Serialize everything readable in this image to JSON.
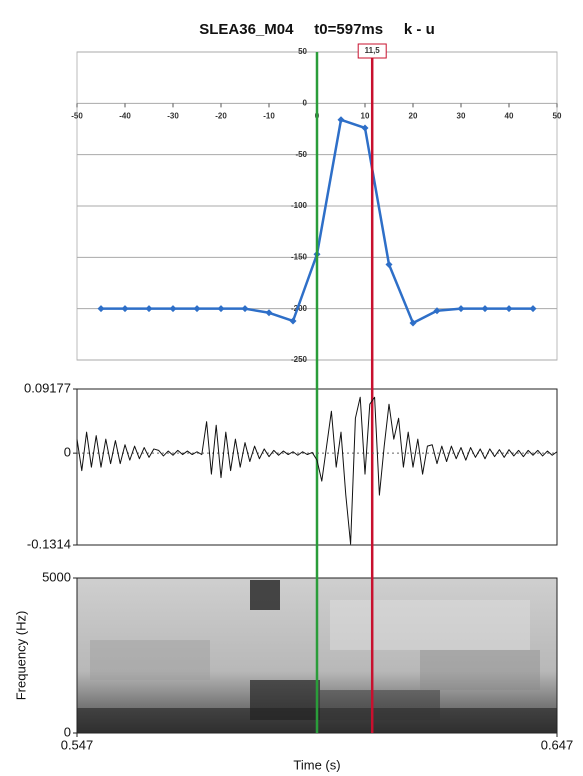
{
  "title": "SLEA36_M04     t0=597ms     k - u",
  "chart_data": [
    {
      "type": "line",
      "color": "#2e6fc8",
      "x": [
        -45,
        -40,
        -35,
        -30,
        -25,
        -20,
        -15,
        -10,
        -5,
        0,
        5,
        10,
        15,
        20,
        25,
        30,
        35,
        40,
        45
      ],
      "values": [
        -200,
        -200,
        -200,
        -200,
        -200,
        -200,
        -200,
        -204,
        -212,
        -147,
        -16,
        -24,
        -157,
        -214,
        -202,
        -200,
        -200,
        -200,
        -200
      ],
      "xlim": [
        -50,
        50
      ],
      "xticks": [
        -50,
        -40,
        -30,
        -20,
        -10,
        0,
        10,
        20,
        30,
        40,
        50
      ],
      "ylim": [
        -250,
        50
      ],
      "yticks": [
        -250,
        -200,
        -150,
        -100,
        -50,
        0,
        50
      ],
      "grid": true,
      "markers": [
        {
          "x": 0,
          "color": "#2a9d3a"
        },
        {
          "x": 11.5,
          "label": "11,5",
          "color": "#c8102e"
        }
      ]
    },
    {
      "type": "waveform",
      "color": "#111111",
      "x": [
        0.547,
        0.548,
        0.549,
        0.55,
        0.551,
        0.552,
        0.553,
        0.554,
        0.555,
        0.556,
        0.557,
        0.558,
        0.559,
        0.56,
        0.561,
        0.562,
        0.563,
        0.564,
        0.565,
        0.566,
        0.567,
        0.568,
        0.569,
        0.57,
        0.571,
        0.572,
        0.573,
        0.574,
        0.575,
        0.576,
        0.577,
        0.578,
        0.579,
        0.58,
        0.581,
        0.582,
        0.583,
        0.584,
        0.585,
        0.586,
        0.587,
        0.588,
        0.589,
        0.59,
        0.591,
        0.592,
        0.593,
        0.594,
        0.595,
        0.596,
        0.597,
        0.598,
        0.599,
        0.6,
        0.601,
        0.602,
        0.603,
        0.604,
        0.605,
        0.606,
        0.607,
        0.608,
        0.609,
        0.61,
        0.611,
        0.612,
        0.613,
        0.614,
        0.615,
        0.616,
        0.617,
        0.618,
        0.619,
        0.62,
        0.621,
        0.622,
        0.623,
        0.624,
        0.625,
        0.626,
        0.627,
        0.628,
        0.629,
        0.63,
        0.631,
        0.632,
        0.633,
        0.634,
        0.635,
        0.636,
        0.637,
        0.638,
        0.639,
        0.64,
        0.641,
        0.642,
        0.643,
        0.644,
        0.645,
        0.646,
        0.647
      ],
      "values": [
        0.02,
        -0.025,
        0.03,
        -0.02,
        0.025,
        -0.02,
        0.02,
        -0.015,
        0.018,
        -0.015,
        0.012,
        -0.01,
        0.01,
        -0.008,
        0.008,
        -0.006,
        0.006,
        0.004,
        -0.004,
        0.003,
        -0.003,
        0.004,
        -0.002,
        0.003,
        -0.002,
        0.002,
        -0.002,
        0.045,
        -0.03,
        0.04,
        -0.035,
        0.03,
        -0.025,
        0.02,
        -0.02,
        0.015,
        -0.012,
        0.01,
        -0.008,
        0.006,
        -0.005,
        0.004,
        -0.003,
        0.003,
        -0.002,
        0.002,
        -0.003,
        0.002,
        -0.002,
        0.001,
        -0.01,
        -0.04,
        0.01,
        0.06,
        -0.02,
        0.03,
        -0.06,
        -0.13,
        0.05,
        0.08,
        -0.03,
        0.07,
        0.08,
        -0.06,
        0.01,
        0.07,
        0.02,
        0.05,
        -0.02,
        0.03,
        -0.02,
        0.02,
        -0.03,
        0.01,
        0.012,
        -0.015,
        0.01,
        -0.012,
        0.01,
        -0.008,
        0.008,
        -0.01,
        0.008,
        -0.006,
        0.006,
        -0.008,
        0.006,
        -0.005,
        0.005,
        -0.006,
        0.005,
        -0.004,
        0.004,
        -0.005,
        0.004,
        -0.003,
        0.004,
        -0.004,
        0.003,
        -0.003,
        0.002
      ],
      "xlim": [
        0.547,
        0.647
      ],
      "ylim": [
        -0.1314,
        0.09177
      ],
      "yticks": [
        -0.1314,
        0,
        0.09177
      ]
    },
    {
      "type": "spectrogram",
      "xlim": [
        0.547,
        0.647
      ],
      "xticks": [
        0.547,
        0.647
      ],
      "xlabel": "Time (s)",
      "ylim": [
        0,
        5000
      ],
      "yticks": [
        0,
        5000
      ],
      "ylabel": "Frequency (Hz)"
    }
  ]
}
